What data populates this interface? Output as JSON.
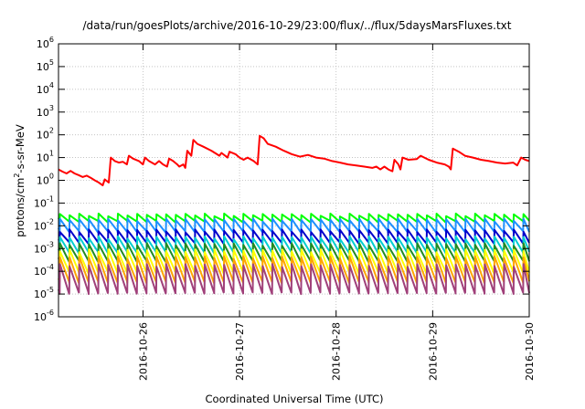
{
  "chart_data": {
    "type": "line",
    "title": "/data/run/goesPlots/archive/2016-10-29/23:00/flux/../flux/5daysMarsFluxes.txt",
    "xlabel": "Coordinated Universal Time (UTC)",
    "ylabel": "protons/cm²-s-sr-MeV",
    "ylabel_parts": {
      "pre": "protons/cm",
      "sup": "2",
      "post": "-s-sr-MeV"
    },
    "yscale": "log",
    "ylim": [
      1e-06,
      1000000.0
    ],
    "xlim": [
      "2016-10-25T03:00",
      "2016-10-30T00:00"
    ],
    "x_ticks": [
      "2016-10-26",
      "2016-10-27",
      "2016-10-28",
      "2016-10-29",
      "2016-10-30"
    ],
    "y_ticks": [
      {
        "base": "10",
        "exp": "6"
      },
      {
        "base": "10",
        "exp": "5"
      },
      {
        "base": "10",
        "exp": "4"
      },
      {
        "base": "10",
        "exp": "3"
      },
      {
        "base": "10",
        "exp": "2"
      },
      {
        "base": "10",
        "exp": "1"
      },
      {
        "base": "10",
        "exp": "0"
      },
      {
        "base": "10",
        "exp": "-1"
      },
      {
        "base": "10",
        "exp": "-2"
      },
      {
        "base": "10",
        "exp": "-3"
      },
      {
        "base": "10",
        "exp": "-4"
      },
      {
        "base": "10",
        "exp": "-5"
      },
      {
        "base": "10",
        "exp": "-6"
      }
    ],
    "grid": true,
    "legend": "none",
    "series_colors": [
      "#ff0000",
      "#00ff00",
      "#1e90ff",
      "#0000cc",
      "#00ced1",
      "#228b22",
      "#ffff00",
      "#ffa500",
      "#a0407a"
    ],
    "series": [
      {
        "color": "#ff0000",
        "points": [
          [
            "2016-10-25T03:00",
            3.0
          ],
          [
            "2016-10-25T04:00",
            2.4
          ],
          [
            "2016-10-25T05:00",
            2.0
          ],
          [
            "2016-10-25T06:00",
            2.6
          ],
          [
            "2016-10-25T07:00",
            2.0
          ],
          [
            "2016-10-25T08:00",
            1.7
          ],
          [
            "2016-10-25T09:00",
            1.4
          ],
          [
            "2016-10-25T10:00",
            1.6
          ],
          [
            "2016-10-25T11:00",
            1.3
          ],
          [
            "2016-10-25T12:00",
            1.0
          ],
          [
            "2016-10-25T13:00",
            0.8
          ],
          [
            "2016-10-25T14:00",
            0.6
          ],
          [
            "2016-10-25T14:30",
            1.1
          ],
          [
            "2016-10-25T15:30",
            0.8
          ],
          [
            "2016-10-25T16:00",
            10.0
          ],
          [
            "2016-10-25T17:00",
            7.0
          ],
          [
            "2016-10-25T18:00",
            6.0
          ],
          [
            "2016-10-25T19:00",
            6.5
          ],
          [
            "2016-10-25T20:00",
            5.0
          ],
          [
            "2016-10-25T20:30",
            12.0
          ],
          [
            "2016-10-25T21:30",
            9.0
          ],
          [
            "2016-10-25T23:00",
            7.0
          ],
          [
            "2016-10-26T00:00",
            5.0
          ],
          [
            "2016-10-26T00:30",
            10.0
          ],
          [
            "2016-10-26T01:30",
            7.0
          ],
          [
            "2016-10-26T03:00",
            5.0
          ],
          [
            "2016-10-26T04:00",
            7.0
          ],
          [
            "2016-10-26T05:00",
            5.0
          ],
          [
            "2016-10-26T06:00",
            4.0
          ],
          [
            "2016-10-26T06:30",
            9.0
          ],
          [
            "2016-10-26T07:30",
            7.0
          ],
          [
            "2016-10-26T08:30",
            5.0
          ],
          [
            "2016-10-26T09:00",
            4.0
          ],
          [
            "2016-10-26T10:00",
            5.0
          ],
          [
            "2016-10-26T10:30",
            3.5
          ],
          [
            "2016-10-26T11:00",
            20.0
          ],
          [
            "2016-10-26T12:00",
            12.0
          ],
          [
            "2016-10-26T12:30",
            60.0
          ],
          [
            "2016-10-26T13:30",
            40.0
          ],
          [
            "2016-10-26T15:00",
            30.0
          ],
          [
            "2016-10-26T17:00",
            20.0
          ],
          [
            "2016-10-26T19:00",
            12.0
          ],
          [
            "2016-10-26T19:30",
            16.0
          ],
          [
            "2016-10-26T21:00",
            10.0
          ],
          [
            "2016-10-26T21:30",
            18.0
          ],
          [
            "2016-10-26T23:00",
            14.0
          ],
          [
            "2016-10-27T00:00",
            10.0
          ],
          [
            "2016-10-27T01:00",
            8.0
          ],
          [
            "2016-10-27T02:00",
            10.0
          ],
          [
            "2016-10-27T03:30",
            7.0
          ],
          [
            "2016-10-27T04:30",
            5.0
          ],
          [
            "2016-10-27T05:00",
            90.0
          ],
          [
            "2016-10-27T06:00",
            70.0
          ],
          [
            "2016-10-27T07:00",
            40.0
          ],
          [
            "2016-10-27T09:00",
            30.0
          ],
          [
            "2016-10-27T11:00",
            20.0
          ],
          [
            "2016-10-27T13:00",
            14.0
          ],
          [
            "2016-10-27T15:00",
            11.0
          ],
          [
            "2016-10-27T17:00",
            13.0
          ],
          [
            "2016-10-27T19:00",
            10.0
          ],
          [
            "2016-10-27T21:00",
            9.0
          ],
          [
            "2016-10-27T23:00",
            7.0
          ],
          [
            "2016-10-28T01:00",
            6.0
          ],
          [
            "2016-10-28T03:00",
            5.0
          ],
          [
            "2016-10-28T05:00",
            4.5
          ],
          [
            "2016-10-28T07:00",
            4.0
          ],
          [
            "2016-10-28T09:00",
            3.5
          ],
          [
            "2016-10-28T10:00",
            4.0
          ],
          [
            "2016-10-28T11:00",
            3.0
          ],
          [
            "2016-10-28T12:00",
            4.0
          ],
          [
            "2016-10-28T13:00",
            3.0
          ],
          [
            "2016-10-28T14:00",
            2.5
          ],
          [
            "2016-10-28T14:30",
            8.0
          ],
          [
            "2016-10-28T15:30",
            5.0
          ],
          [
            "2016-10-28T16:00",
            3.0
          ],
          [
            "2016-10-28T16:30",
            10.0
          ],
          [
            "2016-10-28T18:00",
            8.0
          ],
          [
            "2016-10-28T20:00",
            8.5
          ],
          [
            "2016-10-28T21:00",
            12.0
          ],
          [
            "2016-10-28T23:00",
            8.0
          ],
          [
            "2016-10-29T01:00",
            6.0
          ],
          [
            "2016-10-29T03:00",
            5.0
          ],
          [
            "2016-10-29T04:00",
            4.0
          ],
          [
            "2016-10-29T04:30",
            3.0
          ],
          [
            "2016-10-29T05:00",
            25.0
          ],
          [
            "2016-10-29T06:30",
            18.0
          ],
          [
            "2016-10-29T08:00",
            12.0
          ],
          [
            "2016-10-29T10:00",
            10.0
          ],
          [
            "2016-10-29T12:00",
            8.0
          ],
          [
            "2016-10-29T14:00",
            7.0
          ],
          [
            "2016-10-29T16:00",
            6.0
          ],
          [
            "2016-10-29T18:00",
            5.5
          ],
          [
            "2016-10-29T20:00",
            6.0
          ],
          [
            "2016-10-29T21:00",
            4.5
          ],
          [
            "2016-10-29T22:00",
            10.0
          ],
          [
            "2016-10-29T23:00",
            8.0
          ],
          [
            "2016-10-30T00:00",
            7.0
          ]
        ]
      },
      {
        "color": "#00ff00",
        "sawtooth": {
          "low": 0.014,
          "high": 0.03,
          "period_hours": 2.4
        }
      },
      {
        "color": "#1e90ff",
        "sawtooth": {
          "low": 0.005,
          "high": 0.018,
          "period_hours": 2.4
        }
      },
      {
        "color": "#0000cc",
        "sawtooth": {
          "low": 0.0016,
          "high": 0.006,
          "period_hours": 2.4
        }
      },
      {
        "color": "#00ced1",
        "sawtooth": {
          "low": 0.0006,
          "high": 0.003,
          "period_hours": 2.4
        }
      },
      {
        "color": "#228b22",
        "sawtooth": {
          "low": 0.00025,
          "high": 0.0015,
          "period_hours": 2.4
        }
      },
      {
        "color": "#ffff00",
        "sawtooth": {
          "low": 8e-05,
          "high": 0.0008,
          "period_hours": 2.4
        }
      },
      {
        "color": "#ffa500",
        "sawtooth": {
          "low": 3e-05,
          "high": 0.0004,
          "period_hours": 2.4
        }
      },
      {
        "color": "#a0407a",
        "sawtooth": {
          "low": 1e-05,
          "high": 0.00018,
          "period_hours": 2.4
        }
      }
    ]
  }
}
